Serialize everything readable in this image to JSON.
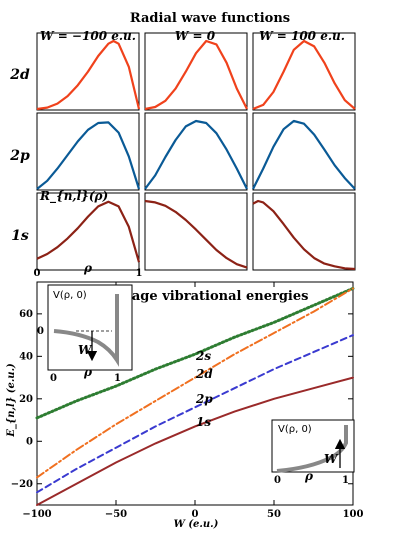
{
  "chart_data": [
    {
      "type": "line",
      "title": "Radial wave functions",
      "columns": [
        {
          "header": "W = −100 e.u.",
          "W": -100
        },
        {
          "header": "W = 0",
          "W": 0
        },
        {
          "header": "W = 100 e.u.",
          "W": 100
        }
      ],
      "rows": [
        {
          "label": "2d",
          "color": "#f0421c"
        },
        {
          "label": "2p",
          "color": "#0a5a96"
        },
        {
          "label": "1s",
          "color": "#8c2216"
        }
      ],
      "ylabel": "R_{n,l}(ρ)",
      "xlabel": "ρ",
      "x_ticks": [
        "0",
        "1"
      ],
      "curves": {
        "2d": {
          "-100": {
            "rho": [
              0,
              0.1,
              0.2,
              0.3,
              0.4,
              0.5,
              0.6,
              0.7,
              0.75,
              0.8,
              0.9,
              1.0
            ],
            "R": [
              0,
              0.02,
              0.08,
              0.19,
              0.35,
              0.55,
              0.78,
              0.96,
              1.0,
              0.96,
              0.62,
              0
            ]
          },
          "0": {
            "rho": [
              0,
              0.1,
              0.2,
              0.3,
              0.4,
              0.5,
              0.6,
              0.7,
              0.8,
              0.9,
              1.0
            ],
            "R": [
              0,
              0.03,
              0.12,
              0.3,
              0.55,
              0.82,
              1.0,
              0.95,
              0.68,
              0.3,
              0
            ]
          },
          "100": {
            "rho": [
              0,
              0.1,
              0.2,
              0.3,
              0.4,
              0.5,
              0.6,
              0.7,
              0.8,
              0.9,
              1.0
            ],
            "R": [
              0,
              0.06,
              0.25,
              0.55,
              0.87,
              1.0,
              0.92,
              0.68,
              0.38,
              0.13,
              0
            ]
          }
        },
        "2p": {
          "-100": {
            "rho": [
              0,
              0.1,
              0.2,
              0.3,
              0.4,
              0.5,
              0.6,
              0.7,
              0.8,
              0.9,
              1.0
            ],
            "R": [
              0,
              0.12,
              0.3,
              0.5,
              0.7,
              0.87,
              0.97,
              0.98,
              0.83,
              0.48,
              0
            ]
          },
          "0": {
            "rho": [
              0,
              0.1,
              0.2,
              0.3,
              0.4,
              0.5,
              0.6,
              0.7,
              0.8,
              0.9,
              1.0
            ],
            "R": [
              0,
              0.2,
              0.47,
              0.72,
              0.92,
              1.0,
              0.97,
              0.82,
              0.58,
              0.3,
              0
            ]
          },
          "100": {
            "rho": [
              0,
              0.1,
              0.2,
              0.3,
              0.4,
              0.5,
              0.6,
              0.7,
              0.8,
              0.9,
              1.0
            ],
            "R": [
              0,
              0.3,
              0.62,
              0.88,
              1.0,
              0.96,
              0.8,
              0.58,
              0.35,
              0.16,
              0
            ]
          }
        },
        "1s": {
          "-100": {
            "rho": [
              0,
              0.1,
              0.2,
              0.3,
              0.4,
              0.5,
              0.6,
              0.7,
              0.8,
              0.9,
              1.0
            ],
            "R": [
              0.15,
              0.22,
              0.32,
              0.45,
              0.6,
              0.77,
              0.92,
              0.99,
              0.92,
              0.62,
              0.1
            ]
          },
          "0": {
            "rho": [
              0,
              0.1,
              0.2,
              0.3,
              0.4,
              0.5,
              0.6,
              0.7,
              0.8,
              0.9,
              1.0
            ],
            "R": [
              1.0,
              0.98,
              0.93,
              0.84,
              0.72,
              0.58,
              0.43,
              0.28,
              0.16,
              0.07,
              0.02
            ]
          },
          "100": {
            "rho": [
              0,
              0.05,
              0.1,
              0.2,
              0.3,
              0.4,
              0.5,
              0.6,
              0.7,
              0.8,
              0.9,
              1.0
            ],
            "R": [
              0.96,
              1.0,
              0.98,
              0.85,
              0.66,
              0.46,
              0.29,
              0.16,
              0.08,
              0.04,
              0.01,
              0
            ]
          }
        }
      }
    },
    {
      "type": "line",
      "title": "Cage vibrational energies",
      "xlabel": "W (e.u.)",
      "ylabel": "E_{n,l} (e.u.)",
      "xlim": [
        -100,
        100
      ],
      "ylim": [
        -30,
        75
      ],
      "x_ticks": [
        -100,
        -50,
        0,
        50,
        100
      ],
      "y_ticks": [
        -20,
        0,
        20,
        40,
        60
      ],
      "x": [
        -100,
        -75,
        -50,
        -25,
        0,
        25,
        50,
        75,
        100
      ],
      "series": [
        {
          "name": "2s",
          "color": "#2e7d32",
          "dash": "dotted",
          "values": [
            11,
            19,
            26,
            34,
            41,
            49,
            56,
            64,
            72
          ]
        },
        {
          "name": "2d",
          "color": "#f07020",
          "dash": "dashdot",
          "values": [
            -17,
            -4,
            8,
            19,
            30,
            41,
            51,
            61,
            72
          ]
        },
        {
          "name": "2p",
          "color": "#3a3ad0",
          "dash": "dashed",
          "values": [
            -24,
            -13,
            -3,
            7,
            16,
            25,
            34,
            42,
            50
          ]
        },
        {
          "name": "1s",
          "color": "#9a2a2a",
          "dash": "solid",
          "values": [
            -30,
            -20,
            -10,
            -1,
            7,
            14,
            20,
            25,
            30
          ]
        }
      ],
      "insets": [
        {
          "ylabel": "V(ρ, 0)",
          "xlabel": "ρ",
          "x_ticks": [
            "0",
            "1"
          ],
          "y_tick": "0",
          "arrow_label": "W",
          "arrow": "down"
        },
        {
          "ylabel": "V(ρ, 0)",
          "xlabel": "ρ",
          "x_ticks": [
            "0",
            "1"
          ],
          "arrow_label": "W",
          "arrow": "up"
        }
      ]
    }
  ]
}
